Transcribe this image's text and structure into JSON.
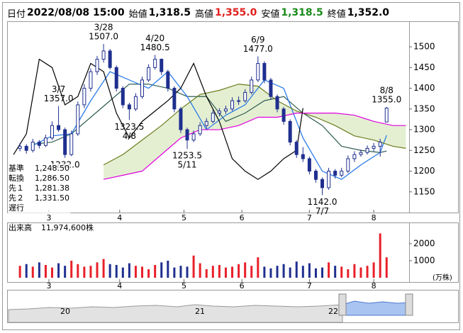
{
  "header": [
    {
      "label": "日付",
      "value": "2022/08/08 15:00"
    },
    {
      "label": "始値",
      "value": "1,318.5"
    },
    {
      "label": "高値",
      "value": "1,355.0",
      "color": "#e0201e"
    },
    {
      "label": "安値",
      "value": "1,318.5",
      "color": "#1a8a1a"
    },
    {
      "label": "終値",
      "value": "1,352.0"
    }
  ],
  "chart_data": [
    {
      "type": "candlestick",
      "up_fill": "#ffffff",
      "down_fill": "#1f2f8f",
      "candle_stroke": "#1f2f8f",
      "cloud_color": "#e4efd2",
      "xlim": [
        0,
        125
      ],
      "xticks": [
        {
          "value": 13,
          "label": "3"
        },
        {
          "value": 35,
          "label": "4"
        },
        {
          "value": 55,
          "label": "5"
        },
        {
          "value": 73,
          "label": "6"
        },
        {
          "value": 94,
          "label": "7"
        },
        {
          "value": 114,
          "label": "8"
        }
      ],
      "ylim": [
        1100,
        1560
      ],
      "yticks": [
        1150,
        1200,
        1250,
        1300,
        1350,
        1400,
        1450,
        1500
      ],
      "candles": [
        [
          4,
          1255,
          1268,
          1248,
          1260
        ],
        [
          6,
          1260,
          1265,
          1242,
          1250
        ],
        [
          8,
          1250,
          1278,
          1245,
          1270
        ],
        [
          10,
          1270,
          1275,
          1255,
          1262
        ],
        [
          12,
          1262,
          1288,
          1258,
          1280
        ],
        [
          14,
          1280,
          1320,
          1275,
          1310
        ],
        [
          16,
          1310,
          1357,
          1295,
          1300
        ],
        [
          18,
          1300,
          1305,
          1232,
          1240
        ],
        [
          20,
          1240,
          1298,
          1236,
          1290
        ],
        [
          22,
          1290,
          1368,
          1285,
          1360
        ],
        [
          24,
          1360,
          1410,
          1352,
          1400
        ],
        [
          26,
          1400,
          1448,
          1392,
          1440
        ],
        [
          28,
          1440,
          1478,
          1432,
          1470
        ],
        [
          30,
          1470,
          1507,
          1462,
          1490
        ],
        [
          32,
          1490,
          1495,
          1445,
          1450
        ],
        [
          34,
          1450,
          1455,
          1392,
          1400
        ],
        [
          36,
          1400,
          1405,
          1352,
          1360
        ],
        [
          38,
          1360,
          1365,
          1323.5,
          1350
        ],
        [
          40,
          1350,
          1388,
          1345,
          1380
        ],
        [
          42,
          1380,
          1428,
          1375,
          1420
        ],
        [
          44,
          1420,
          1458,
          1415,
          1450
        ],
        [
          46,
          1450,
          1480.5,
          1445,
          1470
        ],
        [
          48,
          1470,
          1472,
          1432,
          1440
        ],
        [
          50,
          1440,
          1445,
          1392,
          1400
        ],
        [
          52,
          1400,
          1405,
          1342,
          1350
        ],
        [
          54,
          1350,
          1355,
          1292,
          1300
        ],
        [
          56,
          1300,
          1305,
          1253.5,
          1275
        ],
        [
          58,
          1275,
          1298,
          1270,
          1290
        ],
        [
          60,
          1290,
          1318,
          1285,
          1310
        ],
        [
          62,
          1310,
          1328,
          1302,
          1320
        ],
        [
          64,
          1320,
          1348,
          1315,
          1340
        ],
        [
          66,
          1340,
          1352,
          1332,
          1345
        ],
        [
          68,
          1345,
          1358,
          1338,
          1350
        ],
        [
          70,
          1350,
          1378,
          1345,
          1370
        ],
        [
          72,
          1370,
          1380,
          1360,
          1370
        ],
        [
          74,
          1370,
          1398,
          1365,
          1390
        ],
        [
          76,
          1390,
          1428,
          1385,
          1420
        ],
        [
          78,
          1420,
          1477,
          1415,
          1460
        ],
        [
          80,
          1460,
          1465,
          1412,
          1420
        ],
        [
          82,
          1420,
          1425,
          1372,
          1380
        ],
        [
          84,
          1380,
          1385,
          1342,
          1350
        ],
        [
          86,
          1350,
          1355,
          1312,
          1320
        ],
        [
          88,
          1320,
          1325,
          1262,
          1270
        ],
        [
          90,
          1270,
          1275,
          1232,
          1240
        ],
        [
          92,
          1240,
          1258,
          1222,
          1230
        ],
        [
          94,
          1230,
          1235,
          1192,
          1200
        ],
        [
          96,
          1200,
          1205,
          1172,
          1180
        ],
        [
          98,
          1180,
          1185,
          1142,
          1160
        ],
        [
          100,
          1160,
          1208,
          1155,
          1200
        ],
        [
          102,
          1200,
          1205,
          1182,
          1190
        ],
        [
          104,
          1190,
          1208,
          1185,
          1200
        ],
        [
          106,
          1200,
          1238,
          1195,
          1230
        ],
        [
          108,
          1230,
          1248,
          1222,
          1240
        ],
        [
          110,
          1240,
          1252,
          1235,
          1245
        ],
        [
          112,
          1245,
          1262,
          1240,
          1255
        ],
        [
          114,
          1255,
          1268,
          1248,
          1260
        ],
        [
          116,
          1260,
          1278,
          1235,
          1270
        ],
        [
          118,
          1318.5,
          1355,
          1318.5,
          1352
        ]
      ],
      "series": [
        {
          "name": "基準",
          "legend_value": "1,248.50",
          "color": "#2f5d50",
          "x": [
            8,
            14,
            20,
            26,
            32,
            38,
            44,
            50,
            56,
            62,
            68,
            74,
            80,
            86,
            92,
            98,
            104,
            110,
            116,
            118
          ],
          "values": [
            1265,
            1270,
            1290,
            1330,
            1370,
            1410,
            1410,
            1400,
            1380,
            1380,
            1320,
            1340,
            1370,
            1380,
            1340,
            1310,
            1260,
            1250,
            1245,
            1248.5
          ]
        },
        {
          "name": "転換",
          "legend_value": "1,286.50",
          "color": "#1e73e8",
          "x": [
            8,
            14,
            20,
            26,
            32,
            38,
            44,
            50,
            56,
            62,
            68,
            74,
            80,
            86,
            92,
            98,
            104,
            110,
            116,
            118
          ],
          "values": [
            1262,
            1285,
            1290,
            1370,
            1440,
            1420,
            1400,
            1440,
            1380,
            1300,
            1335,
            1360,
            1420,
            1400,
            1280,
            1200,
            1180,
            1215,
            1245,
            1286.5
          ]
        },
        {
          "name": "先１",
          "legend_value": "1,281.38",
          "color": "#6b7b1e",
          "x": [
            30,
            36,
            42,
            48,
            54,
            60,
            66,
            72,
            78,
            84,
            90,
            96,
            102,
            108,
            114,
            120,
            124
          ],
          "values": [
            1215,
            1240,
            1275,
            1310,
            1350,
            1385,
            1395,
            1410,
            1405,
            1370,
            1345,
            1330,
            1310,
            1285,
            1275,
            1260,
            1255
          ]
        },
        {
          "name": "先２",
          "legend_value": "1,331.50",
          "color": "#e000e0",
          "x": [
            30,
            36,
            42,
            48,
            54,
            60,
            66,
            72,
            78,
            84,
            90,
            96,
            102,
            108,
            114,
            120,
            124
          ],
          "values": [
            1180,
            1190,
            1200,
            1240,
            1280,
            1300,
            1300,
            1310,
            1330,
            1330,
            1340,
            1340,
            1340,
            1335,
            1320,
            1310,
            1310
          ]
        },
        {
          "name": "遅行",
          "color": "#000000",
          "x": [
            2,
            6,
            10,
            14,
            18,
            22,
            26,
            30,
            34,
            38,
            42,
            46,
            50,
            54,
            58,
            62,
            66,
            70,
            74,
            78,
            82,
            86,
            90,
            92
          ],
          "values": [
            1240,
            1290,
            1470,
            1450,
            1360,
            1380,
            1460,
            1440,
            1340,
            1280,
            1320,
            1345,
            1370,
            1400,
            1460,
            1380,
            1320,
            1230,
            1200,
            1180,
            1200,
            1230,
            1250,
            1352
          ]
        }
      ],
      "annotations": [
        {
          "x": 16,
          "value": 1357,
          "label": "1357.0",
          "date": "3/7",
          "position": "above"
        },
        {
          "x": 18,
          "value": 1232,
          "label": "1232.0",
          "position": "below"
        },
        {
          "x": 30,
          "value": 1507,
          "label": "1507.0",
          "date": "3/28",
          "position": "above"
        },
        {
          "x": 38,
          "value": 1323.5,
          "label": "1323.5",
          "date": "4/8",
          "position": "below"
        },
        {
          "x": 46,
          "value": 1480.5,
          "label": "1480.5",
          "date": "4/20",
          "position": "above"
        },
        {
          "x": 56,
          "value": 1253.5,
          "label": "1253.5",
          "date": "5/11",
          "position": "below"
        },
        {
          "x": 78,
          "value": 1477,
          "label": "1477.0",
          "date": "6/9",
          "position": "above"
        },
        {
          "x": 98,
          "value": 1142,
          "label": "1142.0",
          "date": "7/7",
          "position": "below"
        },
        {
          "x": 118,
          "value": 1355,
          "label": "1355.0",
          "date": "8/8",
          "position": "above"
        }
      ]
    },
    {
      "type": "bar",
      "title": "出来高",
      "title_value": "11,974,600株",
      "unit": "(万株)",
      "up_color": "#e8202a",
      "down_color": "#1f2f8f",
      "xlim": [
        0,
        125
      ],
      "ylim": [
        0,
        3200
      ],
      "yticks": [
        1000,
        2000
      ],
      "x": [
        4,
        6,
        8,
        10,
        12,
        14,
        16,
        18,
        20,
        22,
        24,
        26,
        28,
        30,
        32,
        34,
        36,
        38,
        40,
        42,
        44,
        46,
        48,
        50,
        52,
        54,
        56,
        58,
        60,
        62,
        64,
        66,
        68,
        70,
        72,
        74,
        76,
        78,
        80,
        82,
        84,
        86,
        88,
        90,
        92,
        94,
        96,
        98,
        100,
        102,
        104,
        106,
        108,
        110,
        112,
        114,
        116,
        118
      ],
      "values": [
        700,
        800,
        650,
        900,
        750,
        600,
        850,
        700,
        1000,
        800,
        650,
        700,
        900,
        1100,
        800,
        750,
        600,
        850,
        700,
        650,
        500,
        750,
        900,
        1000,
        600,
        700,
        650,
        1300,
        850,
        500,
        700,
        750,
        600,
        650,
        800,
        900,
        700,
        1200,
        650,
        550,
        700,
        800,
        600,
        950,
        700,
        850,
        550,
        600,
        900,
        700,
        650,
        500,
        800,
        600,
        700,
        900,
        2600,
        1197.46
      ]
    }
  ],
  "navigator": {
    "labels": [
      "20",
      "21",
      "22"
    ]
  }
}
